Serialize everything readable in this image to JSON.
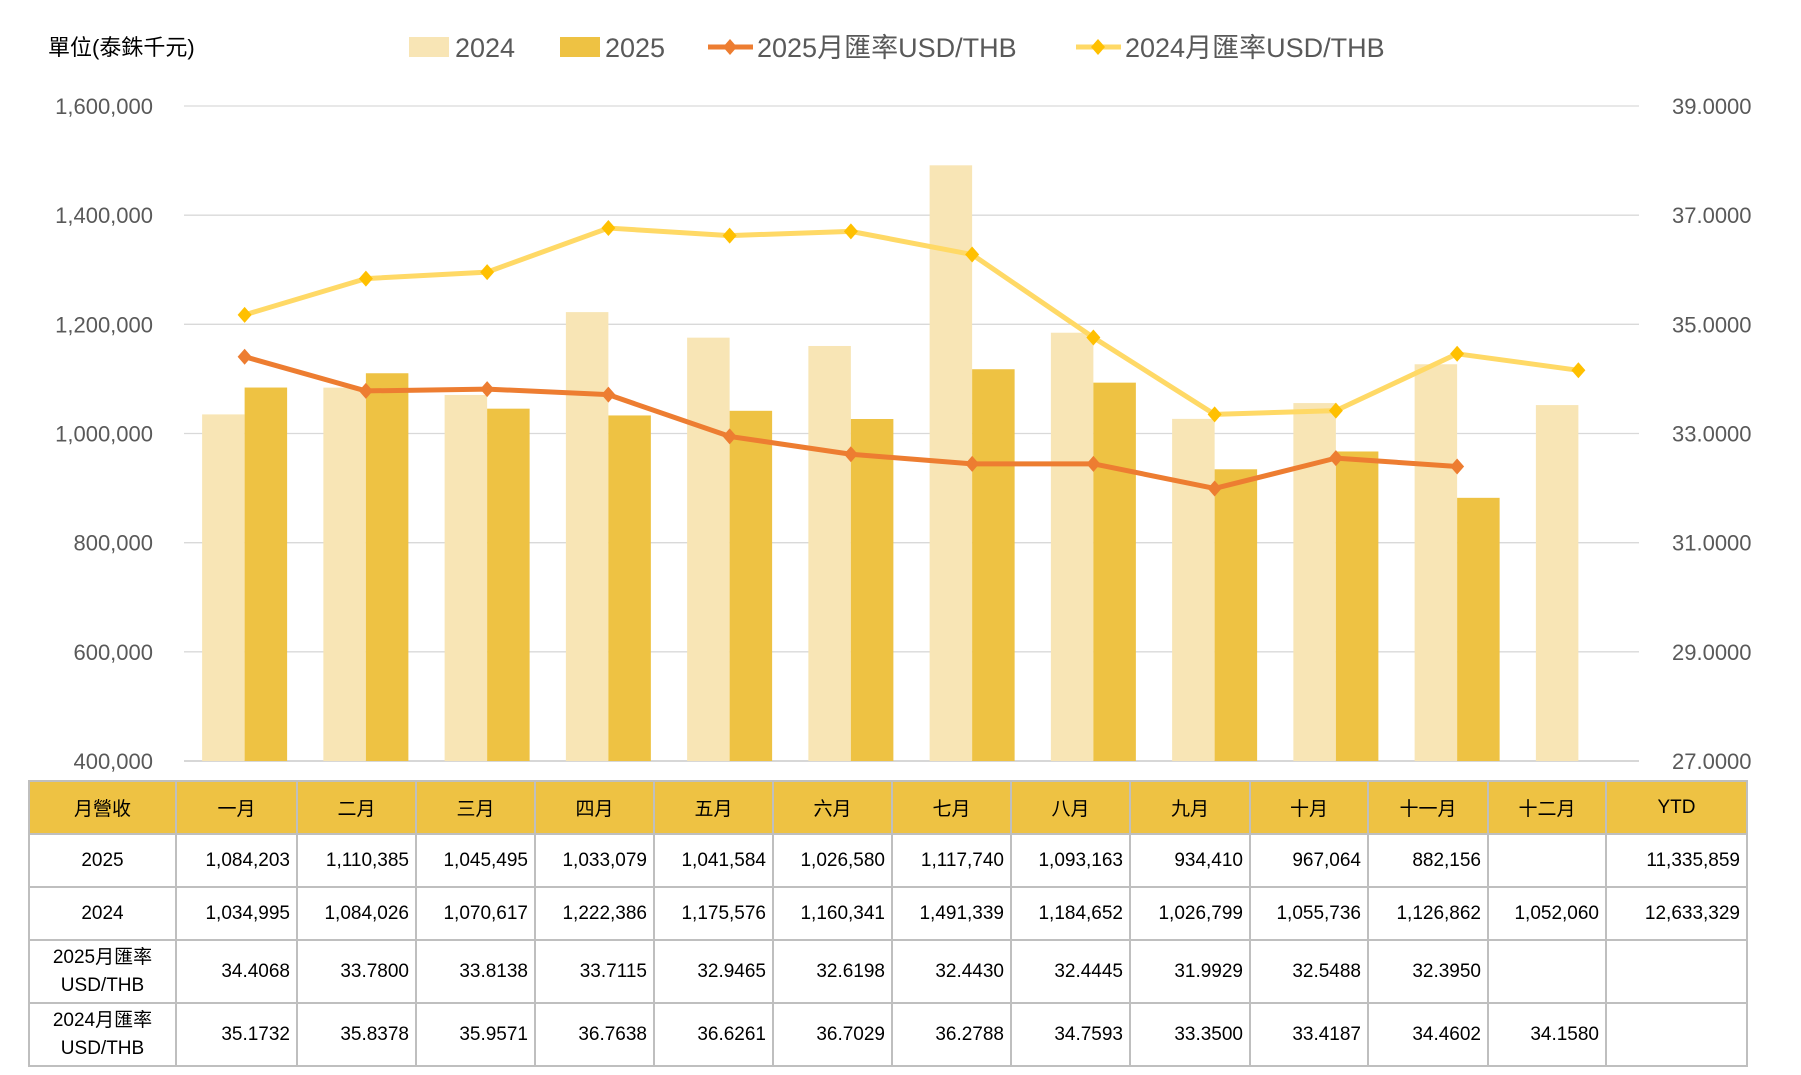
{
  "chart_data": {
    "type": "bar+line",
    "unit_label": "單位(泰銖千元)",
    "categories": [
      "一月",
      "二月",
      "三月",
      "四月",
      "五月",
      "六月",
      "七月",
      "八月",
      "九月",
      "十月",
      "十一月",
      "十二月"
    ],
    "series": [
      {
        "name": "2024",
        "kind": "bar",
        "axis": "left",
        "color": "#F8E5B5",
        "values": [
          1034995,
          1084026,
          1070617,
          1222386,
          1175576,
          1160341,
          1491339,
          1184652,
          1026799,
          1055736,
          1126862,
          1052060
        ]
      },
      {
        "name": "2025",
        "kind": "bar",
        "axis": "left",
        "color": "#EEC243",
        "values": [
          1084203,
          1110385,
          1045495,
          1033079,
          1041584,
          1026580,
          1117740,
          1093163,
          934410,
          967064,
          882156,
          null
        ]
      },
      {
        "name": "2025月匯率USD/THB",
        "kind": "line",
        "axis": "right",
        "color": "#ED7D31",
        "values": [
          34.4068,
          33.78,
          33.8138,
          33.7115,
          32.9465,
          32.6198,
          32.443,
          32.4445,
          31.9929,
          32.5488,
          32.395,
          null
        ]
      },
      {
        "name": "2024月匯率USD/THB",
        "kind": "line",
        "axis": "right",
        "color": "#FFD966",
        "marker_color": "#FFC000",
        "values": [
          35.1732,
          35.8378,
          35.9571,
          36.7638,
          36.6261,
          36.7029,
          36.2788,
          34.7593,
          33.35,
          33.4187,
          34.4602,
          34.158
        ]
      }
    ],
    "left_axis": {
      "ylim": [
        400000,
        1600000
      ],
      "ticks": [
        "400,000",
        "600,000",
        "800,000",
        "1,000,000",
        "1,200,000",
        "1,400,000",
        "1,600,000"
      ]
    },
    "right_axis": {
      "ylim": [
        27,
        39
      ],
      "ticks": [
        "27.0000",
        "29.0000",
        "31.0000",
        "33.0000",
        "35.0000",
        "37.0000",
        "39.0000"
      ]
    },
    "grid": true,
    "legend": "top"
  },
  "table": {
    "header": [
      "月營收",
      "一月",
      "二月",
      "三月",
      "四月",
      "五月",
      "六月",
      "七月",
      "八月",
      "九月",
      "十月",
      "十一月",
      "十二月",
      "YTD"
    ],
    "rows": [
      {
        "label": [
          "2025"
        ],
        "cells": [
          "1,084,203",
          "1,110,385",
          "1,045,495",
          "1,033,079",
          "1,041,584",
          "1,026,580",
          "1,117,740",
          "1,093,163",
          "934,410",
          "967,064",
          "882,156",
          "",
          "11,335,859"
        ]
      },
      {
        "label": [
          "2024"
        ],
        "cells": [
          "1,034,995",
          "1,084,026",
          "1,070,617",
          "1,222,386",
          "1,175,576",
          "1,160,341",
          "1,491,339",
          "1,184,652",
          "1,026,799",
          "1,055,736",
          "1,126,862",
          "1,052,060",
          "12,633,329"
        ]
      },
      {
        "label": [
          "2025月匯率",
          "USD/THB"
        ],
        "cells": [
          "34.4068",
          "33.7800",
          "33.8138",
          "33.7115",
          "32.9465",
          "32.6198",
          "32.4430",
          "32.4445",
          "31.9929",
          "32.5488",
          "32.3950",
          "",
          ""
        ]
      },
      {
        "label": [
          "2024月匯率",
          "USD/THB"
        ],
        "cells": [
          "35.1732",
          "35.8378",
          "35.9571",
          "36.7638",
          "36.6261",
          "36.7029",
          "36.2788",
          "34.7593",
          "33.3500",
          "33.4187",
          "34.4602",
          "34.1580",
          ""
        ]
      }
    ]
  }
}
